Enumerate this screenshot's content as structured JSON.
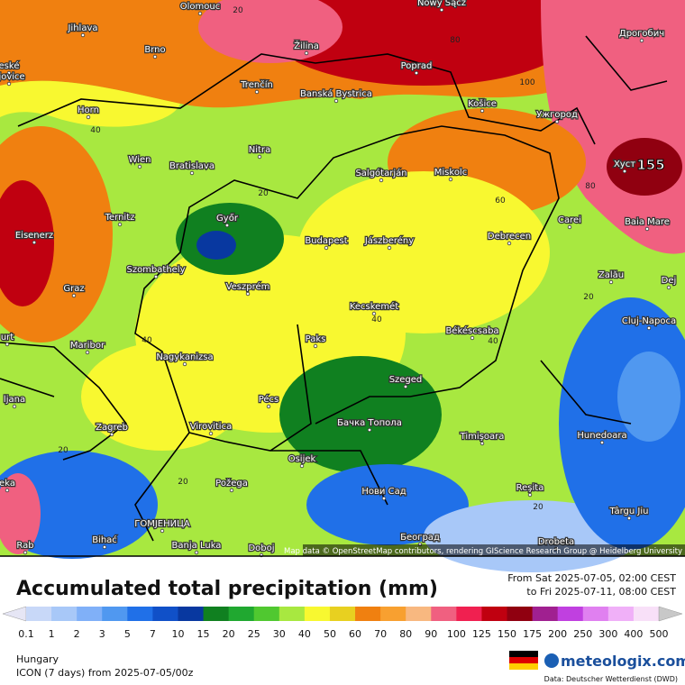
{
  "map": {
    "cities": [
      "Olomouc",
      "Nowy Sącz",
      "Jihlava",
      "Brno",
      "Žilina",
      "Poprad",
      "Дрогобич",
      "eské",
      "ějovice",
      "Trenčín",
      "Banská Bystrica",
      "Košice",
      "Ужгород",
      "Horn",
      "Nitra",
      "Wien",
      "Bratislava",
      "Salgótarján",
      "Miskolc",
      "Хуст",
      "Ternitz",
      "Győr",
      "Budapest",
      "Jászberény",
      "Debrecen",
      "Carei",
      "Baia Mare",
      "Eisenerz",
      "Szombathely",
      "Graz",
      "Veszprém",
      "Zalău",
      "Dej",
      "Kecskemét",
      "Cluj-Napoca",
      "Békéscsaba",
      "urt",
      "Maribor",
      "Paks",
      "Nagykanizsa",
      "Szeged",
      "ljana",
      "Pécs",
      "Бачка Топола",
      "Virovitica",
      "Zagreb",
      "Timişoara",
      "Hunedoara",
      "Osijek",
      "eka",
      "Požega",
      "Нови Сад",
      "Reşita",
      "Târgu Jiu",
      "ГОМЈЕНИЦА",
      "Bihać",
      "Banja Luka",
      "Doboj",
      "Београд",
      "Drobeta",
      "Rab"
    ],
    "contour_labels": [
      "20",
      "80",
      "100",
      "40",
      "20",
      "60",
      "80",
      "40",
      "40",
      "40",
      "20",
      "20",
      "20",
      "20"
    ],
    "max_label": "155",
    "attribution": "Map data © OpenStreetMap contributors, rendering GIScience Research Group @ Heidelberg University"
  },
  "header": {
    "title": "Accumulated total precipitation (mm)",
    "period_from": "From Sat 2025-07-05, 02:00 CEST",
    "period_to": "to Fri 2025-07-11, 08:00 CEST"
  },
  "legend": {
    "levels": [
      0.1,
      1,
      2,
      3,
      5,
      7,
      10,
      15,
      20,
      25,
      30,
      40,
      50,
      60,
      70,
      80,
      90,
      100,
      125,
      150,
      175,
      200,
      250,
      300,
      400,
      500
    ],
    "colors": [
      "#e6e6f5",
      "#c8d8f8",
      "#a8c8f8",
      "#80b0f8",
      "#5098f0",
      "#2070e8",
      "#1050c8",
      "#0838a0",
      "#108020",
      "#20a830",
      "#50c830",
      "#a8e840",
      "#f8f830",
      "#e8d020",
      "#f08010",
      "#f8a030",
      "#f8b880",
      "#f06080",
      "#f02050",
      "#c00010",
      "#900010",
      "#a02090",
      "#c040e0",
      "#e080f0",
      "#f0b0f8",
      "#f8e0f8",
      "#c8c8c8"
    ]
  },
  "footer": {
    "region": "Hungary",
    "model": "ICON (7 days) from  2025-07-05/00z",
    "brand": "meteologix.com",
    "source": "Data: Deutscher Wetterdienst (DWD)"
  }
}
